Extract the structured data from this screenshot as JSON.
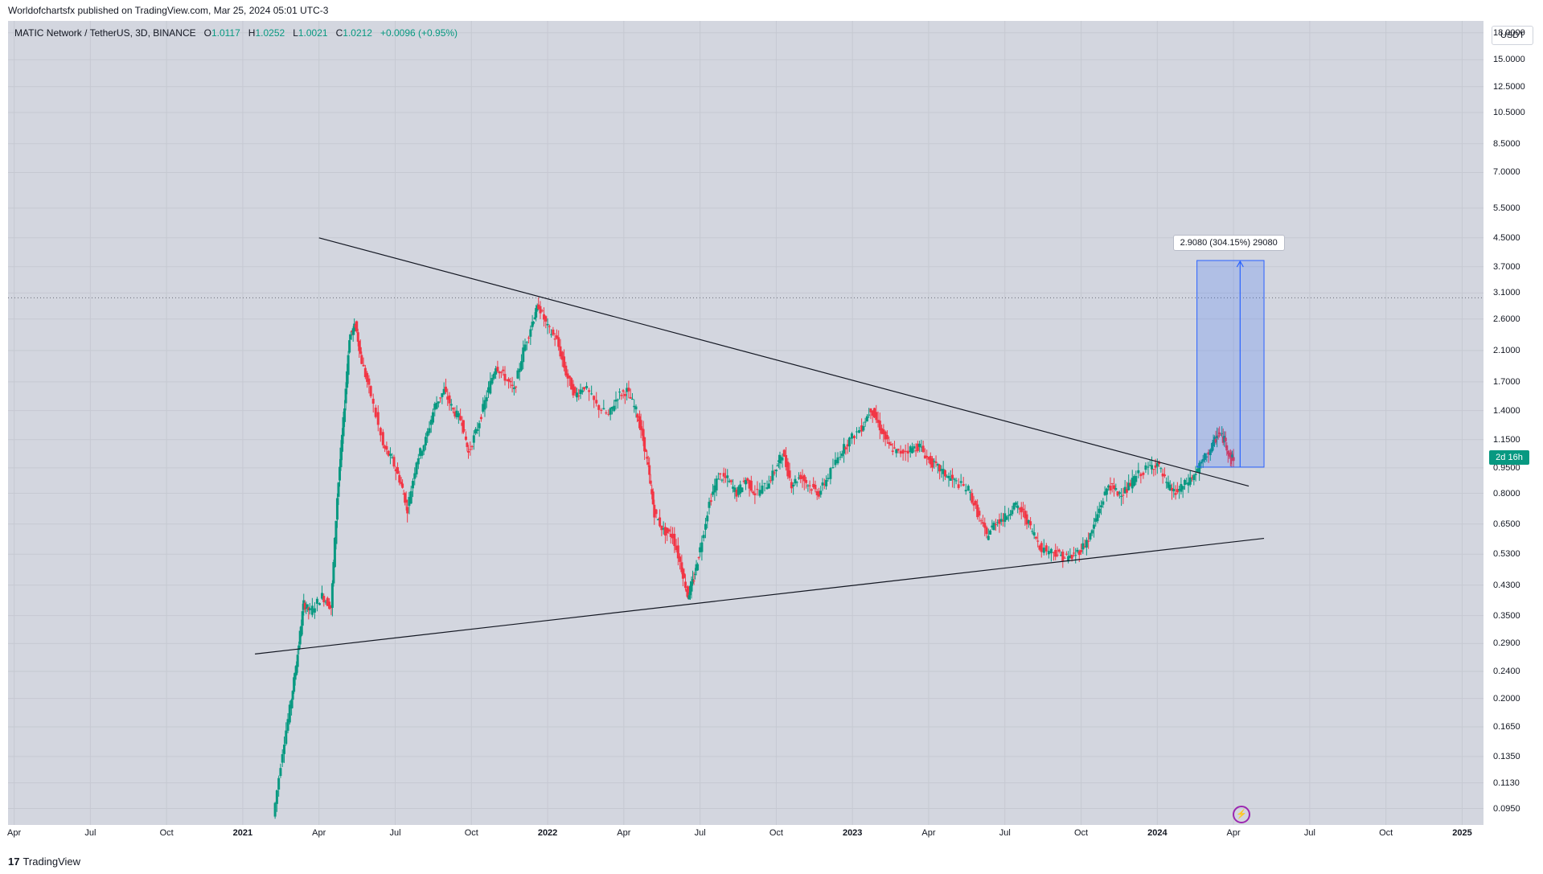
{
  "header": {
    "published": "Worldofchartsfx published on TradingView.com, Mar 25, 2024 05:01 UTC-3"
  },
  "legend": {
    "symbol": "MATIC Network / TetherUS, 3D, BINANCE",
    "o_label": "O",
    "o": "1.0117",
    "h_label": "H",
    "h": "1.0252",
    "l_label": "L",
    "l": "1.0021",
    "c_label": "C",
    "c": "1.0212",
    "change": "+0.0096 (+0.95%)"
  },
  "currency": "USDT",
  "price_axis": [
    "18.0000",
    "15.0000",
    "12.5000",
    "10.5000",
    "8.5000",
    "7.0000",
    "5.5000",
    "4.5000",
    "3.7000",
    "3.1000",
    "2.6000",
    "2.1000",
    "1.7000",
    "1.4000",
    "1.1500",
    "0.9500",
    "0.8000",
    "0.6500",
    "0.5300",
    "0.4300",
    "0.3500",
    "0.2900",
    "0.2400",
    "0.2000",
    "0.1650",
    "0.1350",
    "0.1130",
    "0.0950"
  ],
  "current_price_tag": "2d 16h",
  "time_axis": [
    {
      "label": "Apr",
      "t": 2020.25,
      "year": false
    },
    {
      "label": "Jul",
      "t": 2020.5,
      "year": false
    },
    {
      "label": "Oct",
      "t": 2020.75,
      "year": false
    },
    {
      "label": "2021",
      "t": 2021.0,
      "year": true
    },
    {
      "label": "Apr",
      "t": 2021.25,
      "year": false
    },
    {
      "label": "Jul",
      "t": 2021.5,
      "year": false
    },
    {
      "label": "Oct",
      "t": 2021.75,
      "year": false
    },
    {
      "label": "2022",
      "t": 2022.0,
      "year": true
    },
    {
      "label": "Apr",
      "t": 2022.25,
      "year": false
    },
    {
      "label": "Jul",
      "t": 2022.5,
      "year": false
    },
    {
      "label": "Oct",
      "t": 2022.75,
      "year": false
    },
    {
      "label": "2023",
      "t": 2023.0,
      "year": true
    },
    {
      "label": "Apr",
      "t": 2023.25,
      "year": false
    },
    {
      "label": "Jul",
      "t": 2023.5,
      "year": false
    },
    {
      "label": "Oct",
      "t": 2023.75,
      "year": false
    },
    {
      "label": "2024",
      "t": 2024.0,
      "year": true
    },
    {
      "label": "Apr",
      "t": 2024.25,
      "year": false
    },
    {
      "label": "Jul",
      "t": 2024.5,
      "year": false
    },
    {
      "label": "Oct",
      "t": 2024.75,
      "year": false
    },
    {
      "label": "2025",
      "t": 2025.0,
      "year": true
    }
  ],
  "measure": {
    "label": "2.9080 (304.15%) 29080",
    "from_price": 0.955,
    "to_price": 3.86,
    "t_start": 2024.13,
    "t_end": 2024.35
  },
  "footer": {
    "logo": "17",
    "brand": "TradingView"
  },
  "colors": {
    "up": "#089981",
    "down": "#f23645",
    "measure": "#2962ff",
    "trendline": "#131722",
    "background": "#d3d6df"
  },
  "chart_data": {
    "type": "candlestick",
    "symbol": "MATIC Network / TetherUS",
    "timeframe": "3D",
    "exchange": "BINANCE",
    "y_scale": "log",
    "ylim": [
      0.085,
      19.5
    ],
    "xlim": [
      2020.23,
      2025.07
    ],
    "ohlc_last": {
      "open": 1.0117,
      "high": 1.0252,
      "low": 1.0021,
      "close": 1.0212,
      "change": 0.0096,
      "change_pct": 0.95
    },
    "price_series": [
      [
        2021.1,
        0.09
      ],
      [
        2021.13,
        0.14
      ],
      [
        2021.16,
        0.2
      ],
      [
        2021.18,
        0.27
      ],
      [
        2021.2,
        0.38
      ],
      [
        2021.22,
        0.36
      ],
      [
        2021.26,
        0.4
      ],
      [
        2021.29,
        0.37
      ],
      [
        2021.31,
        0.78
      ],
      [
        2021.33,
        1.3
      ],
      [
        2021.35,
        2.3
      ],
      [
        2021.37,
        2.5
      ],
      [
        2021.39,
        1.95
      ],
      [
        2021.42,
        1.55
      ],
      [
        2021.46,
        1.1
      ],
      [
        2021.49,
        1.0
      ],
      [
        2021.52,
        0.85
      ],
      [
        2021.54,
        0.72
      ],
      [
        2021.57,
        1.0
      ],
      [
        2021.6,
        1.15
      ],
      [
        2021.63,
        1.45
      ],
      [
        2021.66,
        1.6
      ],
      [
        2021.69,
        1.4
      ],
      [
        2021.72,
        1.3
      ],
      [
        2021.74,
        1.05
      ],
      [
        2021.77,
        1.25
      ],
      [
        2021.8,
        1.55
      ],
      [
        2021.83,
        1.9
      ],
      [
        2021.86,
        1.75
      ],
      [
        2021.89,
        1.6
      ],
      [
        2021.92,
        2.1
      ],
      [
        2021.95,
        2.55
      ],
      [
        2021.97,
        2.85
      ],
      [
        2022.0,
        2.45
      ],
      [
        2022.03,
        2.25
      ],
      [
        2022.06,
        1.8
      ],
      [
        2022.09,
        1.55
      ],
      [
        2022.12,
        1.65
      ],
      [
        2022.16,
        1.45
      ],
      [
        2022.2,
        1.35
      ],
      [
        2022.23,
        1.55
      ],
      [
        2022.26,
        1.6
      ],
      [
        2022.29,
        1.4
      ],
      [
        2022.31,
        1.2
      ],
      [
        2022.33,
        0.95
      ],
      [
        2022.35,
        0.7
      ],
      [
        2022.38,
        0.62
      ],
      [
        2022.41,
        0.6
      ],
      [
        2022.44,
        0.48
      ],
      [
        2022.46,
        0.4
      ],
      [
        2022.48,
        0.45
      ],
      [
        2022.5,
        0.55
      ],
      [
        2022.53,
        0.75
      ],
      [
        2022.56,
        0.9
      ],
      [
        2022.59,
        0.88
      ],
      [
        2022.62,
        0.8
      ],
      [
        2022.65,
        0.88
      ],
      [
        2022.68,
        0.8
      ],
      [
        2022.72,
        0.85
      ],
      [
        2022.75,
        0.95
      ],
      [
        2022.77,
        1.05
      ],
      [
        2022.8,
        0.85
      ],
      [
        2022.83,
        0.9
      ],
      [
        2022.86,
        0.84
      ],
      [
        2022.89,
        0.8
      ],
      [
        2022.92,
        0.9
      ],
      [
        2022.96,
        1.05
      ],
      [
        2022.99,
        1.15
      ],
      [
        2023.03,
        1.25
      ],
      [
        2023.06,
        1.42
      ],
      [
        2023.09,
        1.25
      ],
      [
        2023.12,
        1.1
      ],
      [
        2023.15,
        1.05
      ],
      [
        2023.19,
        1.08
      ],
      [
        2023.22,
        1.1
      ],
      [
        2023.25,
        1.0
      ],
      [
        2023.28,
        0.95
      ],
      [
        2023.31,
        0.9
      ],
      [
        2023.34,
        0.86
      ],
      [
        2023.38,
        0.82
      ],
      [
        2023.41,
        0.7
      ],
      [
        2023.44,
        0.6
      ],
      [
        2023.47,
        0.66
      ],
      [
        2023.5,
        0.68
      ],
      [
        2023.53,
        0.74
      ],
      [
        2023.56,
        0.7
      ],
      [
        2023.59,
        0.62
      ],
      [
        2023.62,
        0.55
      ],
      [
        2023.66,
        0.54
      ],
      [
        2023.69,
        0.52
      ],
      [
        2023.72,
        0.52
      ],
      [
        2023.75,
        0.55
      ],
      [
        2023.78,
        0.6
      ],
      [
        2023.81,
        0.72
      ],
      [
        2023.84,
        0.85
      ],
      [
        2023.87,
        0.8
      ],
      [
        2023.9,
        0.82
      ],
      [
        2023.93,
        0.9
      ],
      [
        2023.97,
        0.95
      ],
      [
        2024.0,
        0.98
      ],
      [
        2024.03,
        0.85
      ],
      [
        2024.06,
        0.8
      ],
      [
        2024.09,
        0.85
      ],
      [
        2024.12,
        0.9
      ],
      [
        2024.15,
        1.0
      ],
      [
        2024.18,
        1.1
      ],
      [
        2024.2,
        1.2
      ],
      [
        2024.22,
        1.15
      ],
      [
        2024.24,
        1.02
      ],
      [
        2024.25,
        1.02
      ]
    ],
    "trendlines": [
      {
        "name": "",
        "p1": [
          2021.25,
          4.5
        ],
        "p2": [
          2024.3,
          0.84
        ]
      },
      {
        "name": "",
        "p1": [
          2021.04,
          0.27
        ],
        "p2": [
          2024.35,
          0.59
        ]
      }
    ],
    "reference_line_price": 3.0,
    "grid": true
  }
}
